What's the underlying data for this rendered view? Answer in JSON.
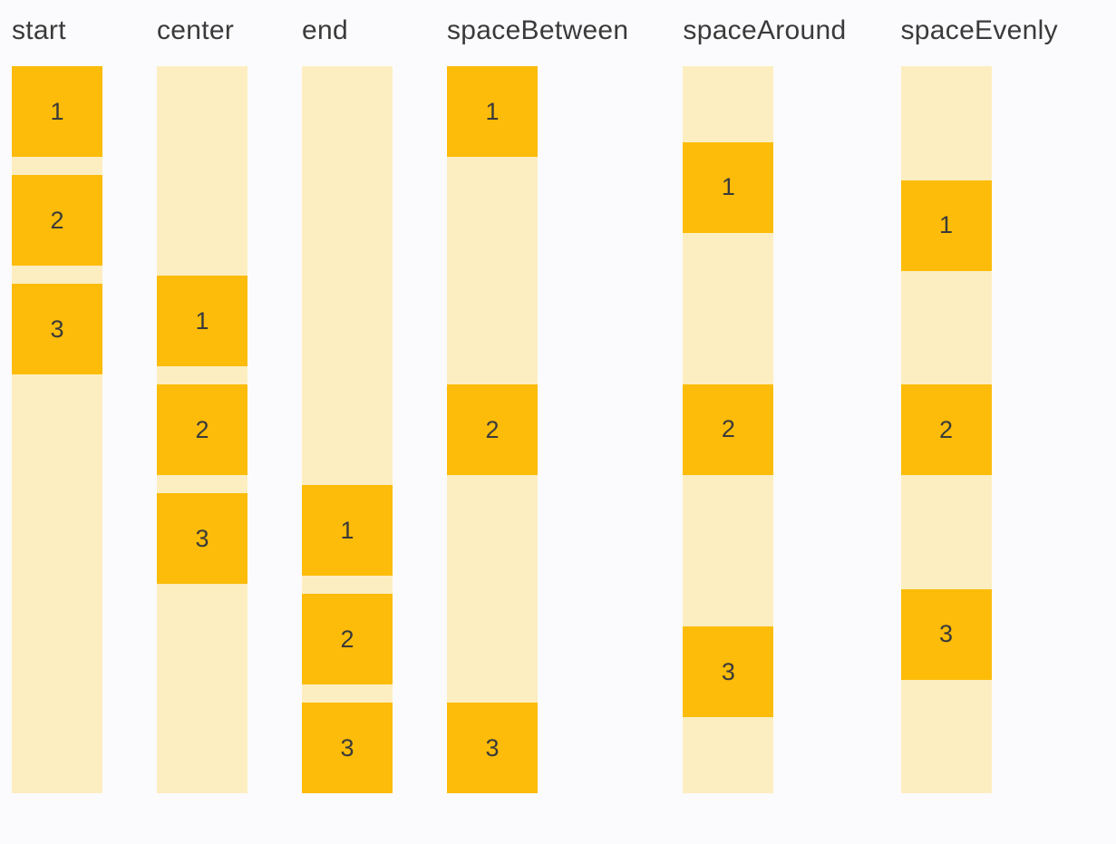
{
  "page": {
    "background": "#FBFBFE"
  },
  "colors": {
    "amber_box": "#FCBC09",
    "cream_track": "#FDEEC1",
    "heading_text": "#3A3A3A",
    "digit_text": "#3A3A3A"
  },
  "columns": [
    {
      "label": "start",
      "justify": "flex-start",
      "gap": 20,
      "items": [
        "1",
        "2",
        "3"
      ]
    },
    {
      "label": "center",
      "justify": "center",
      "gap": 20,
      "items": [
        "1",
        "2",
        "3"
      ]
    },
    {
      "label": "end",
      "justify": "flex-end",
      "gap": 20,
      "items": [
        "1",
        "2",
        "3"
      ]
    },
    {
      "label": "spaceBetween",
      "justify": "space-between",
      "gap": 0,
      "items": [
        "1",
        "2",
        "3"
      ]
    },
    {
      "label": "spaceAround",
      "justify": "space-around",
      "gap": 0,
      "items": [
        "1",
        "2",
        "3"
      ]
    },
    {
      "label": "spaceEvenly",
      "justify": "space-evenly",
      "gap": 0,
      "items": [
        "1",
        "2",
        "3"
      ]
    }
  ]
}
